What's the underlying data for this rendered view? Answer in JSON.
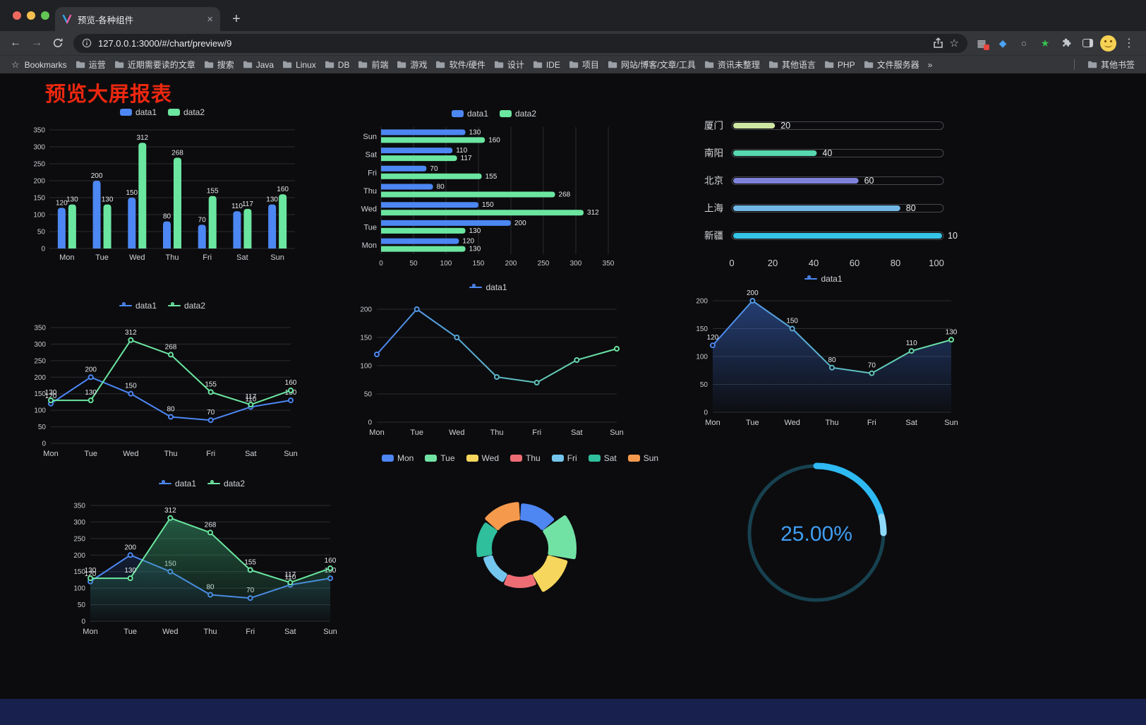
{
  "browser": {
    "tab_title": "预览-各种组件",
    "url": "127.0.0.1:3000/#/chart/preview/9",
    "bookmarks_label": "Bookmarks",
    "bookmarks": [
      "运营",
      "近期需要读的文章",
      "搜索",
      "Java",
      "Linux",
      "DB",
      "前端",
      "游戏",
      "软件/硬件",
      "设计",
      "IDE",
      "项目",
      "网站/博客/文章/工具",
      "资讯未整理",
      "其他语言",
      "PHP",
      "文件服务器"
    ],
    "bookmarks_overflow": "»",
    "other_bookmarks": "其他书签"
  },
  "page": {
    "title": "预览大屏报表",
    "title_color": "#ec2710"
  },
  "chart_data": [
    {
      "id": "bar-grouped",
      "type": "bar",
      "categories": [
        "Mon",
        "Tue",
        "Wed",
        "Thu",
        "Fri",
        "Sat",
        "Sun"
      ],
      "series": [
        {
          "name": "data1",
          "color": "#4C87F3",
          "values": [
            120,
            200,
            150,
            80,
            70,
            110,
            130
          ]
        },
        {
          "name": "data2",
          "color": "#6BE6A0",
          "values": [
            130,
            130,
            312,
            268,
            155,
            117,
            160
          ]
        }
      ],
      "ylim": [
        0,
        350
      ],
      "ytick": 50,
      "value_labels": true,
      "legend_position": "top",
      "grid": true
    },
    {
      "id": "bar-horizontal",
      "type": "hbar",
      "categories": [
        "Mon",
        "Tue",
        "Wed",
        "Thu",
        "Fri",
        "Sat",
        "Sun"
      ],
      "category_display": "Sun at top, Mon at bottom",
      "series": [
        {
          "name": "data1",
          "color": "#4C87F3",
          "values": [
            120,
            200,
            150,
            80,
            70,
            110,
            130
          ]
        },
        {
          "name": "data2",
          "color": "#6BE6A0",
          "values": [
            130,
            130,
            312,
            268,
            155,
            117,
            160
          ]
        }
      ],
      "xlim": [
        0,
        350
      ],
      "xtick": 50,
      "value_labels": true,
      "legend_position": "top",
      "grid": true
    },
    {
      "id": "progress-list",
      "type": "progress",
      "max": 100,
      "axis_ticks": [
        0,
        20,
        40,
        60,
        80,
        100
      ],
      "items": [
        {
          "label": "厦门",
          "value": 20,
          "color": "#cde6a2"
        },
        {
          "label": "南阳",
          "value": 40,
          "color": "#56d7af"
        },
        {
          "label": "北京",
          "value": 60,
          "color": "#8083dc"
        },
        {
          "label": "上海",
          "value": 80,
          "color": "#72b8e6"
        },
        {
          "label": "新疆",
          "value": 100,
          "color": "#35c3e8"
        }
      ]
    },
    {
      "id": "line-two",
      "type": "line",
      "categories": [
        "Mon",
        "Tue",
        "Wed",
        "Thu",
        "Fri",
        "Sat",
        "Sun"
      ],
      "series": [
        {
          "name": "data1",
          "color": "#4C87F3",
          "values": [
            120,
            200,
            150,
            80,
            70,
            110,
            130
          ]
        },
        {
          "name": "data2",
          "color": "#6BE6A0",
          "values": [
            130,
            130,
            312,
            268,
            155,
            117,
            160
          ]
        }
      ],
      "ylim": [
        0,
        350
      ],
      "ytick": 50,
      "value_labels": true,
      "legend_position": "top",
      "grid": true
    },
    {
      "id": "line-gradient",
      "type": "line",
      "categories": [
        "Mon",
        "Tue",
        "Wed",
        "Thu",
        "Fri",
        "Sat",
        "Sun"
      ],
      "series": [
        {
          "name": "data1",
          "gradient": [
            "#4C87F3",
            "#6BE6A0"
          ],
          "values": [
            120,
            200,
            150,
            80,
            70,
            110,
            130
          ]
        }
      ],
      "ylim": [
        0,
        200
      ],
      "ytick": 50,
      "value_labels": false,
      "legend_position": "top",
      "grid": true
    },
    {
      "id": "line-area",
      "type": "line",
      "categories": [
        "Mon",
        "Tue",
        "Wed",
        "Thu",
        "Fri",
        "Sat",
        "Sun"
      ],
      "series": [
        {
          "name": "data1",
          "gradient": [
            "#4C87F3",
            "#6BE6A0"
          ],
          "area": true,
          "area_color": "#3C6FD6",
          "area_opacity": 0.5,
          "values": [
            120,
            200,
            150,
            80,
            70,
            110,
            130
          ]
        }
      ],
      "ylim": [
        0,
        200
      ],
      "ytick": 50,
      "value_labels": true,
      "legend_position": "top",
      "grid": true
    },
    {
      "id": "line-two-area",
      "type": "line",
      "categories": [
        "Mon",
        "Tue",
        "Wed",
        "Thu",
        "Fri",
        "Sat",
        "Sun"
      ],
      "series": [
        {
          "name": "data1",
          "color": "#4C87F3",
          "area": true,
          "area_color": "#2F5FB8",
          "area_opacity": 0.22,
          "values": [
            120,
            200,
            150,
            80,
            70,
            110,
            130
          ]
        },
        {
          "name": "data2",
          "color": "#6BE6A0",
          "area": true,
          "area_color": "#3aa876",
          "area_opacity": 0.5,
          "values": [
            130,
            130,
            312,
            268,
            155,
            117,
            160
          ]
        }
      ],
      "ylim": [
        0,
        350
      ],
      "ytick": 50,
      "value_labels": true,
      "legend_position": "top",
      "grid": true
    },
    {
      "id": "rose-pie",
      "type": "pie",
      "rose": true,
      "categories": [
        "Mon",
        "Tue",
        "Wed",
        "Thu",
        "Fri",
        "Sat",
        "Sun"
      ],
      "values": [
        120,
        200,
        150,
        80,
        70,
        110,
        130
      ],
      "colors": [
        "#4E86F2",
        "#72E2A4",
        "#F6D65C",
        "#EE6D75",
        "#74C6EE",
        "#2FBF9D",
        "#F59A4D"
      ],
      "legend_position": "top"
    },
    {
      "id": "gauge-ring",
      "type": "gauge",
      "value": 25,
      "label": "25.00%",
      "color": "#2EB9F2",
      "tip_color": "#8FD9F8",
      "track_color": "#17414F",
      "text_color": "#3F9EF3"
    }
  ]
}
